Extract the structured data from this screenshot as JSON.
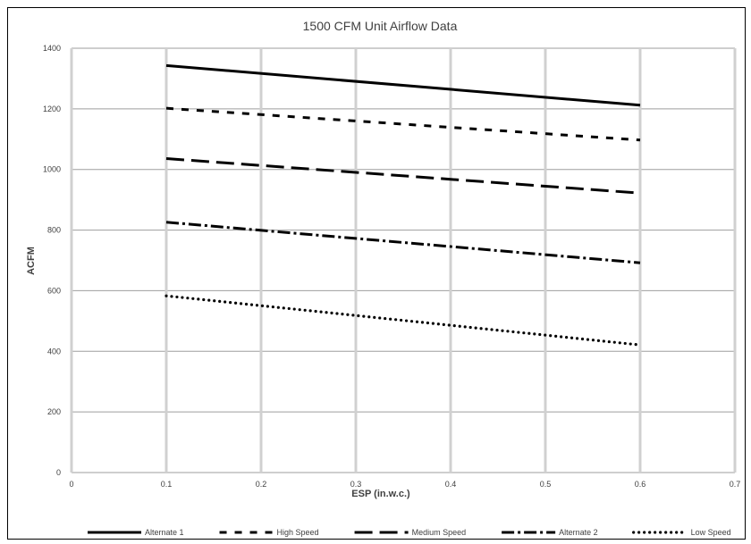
{
  "chart_data": {
    "type": "line",
    "title": "1500 CFM Unit Airflow Data",
    "xlabel": "ESP (in.w.c.)",
    "ylabel": "ACFM",
    "xlim": [
      0,
      0.7
    ],
    "ylim": [
      0,
      1400
    ],
    "x_ticks": [
      "0",
      "0.1",
      "0.2",
      "0.3",
      "0.4",
      "0.5",
      "0.6",
      "0.7"
    ],
    "y_ticks": [
      "0",
      "200",
      "400",
      "600",
      "800",
      "1000",
      "1200",
      "1400"
    ],
    "grid": true,
    "legend_position": "bottom",
    "x": [
      0.1,
      0.6
    ],
    "series": [
      {
        "name": "Alternate 1",
        "values": [
          1343,
          1212
        ],
        "style": "solid",
        "color": "#000000"
      },
      {
        "name": "High Speed",
        "values": [
          1202,
          1097
        ],
        "style": "short-dash",
        "color": "#000000"
      },
      {
        "name": "Medium Speed",
        "values": [
          1036,
          922
        ],
        "style": "long-dash",
        "color": "#000000"
      },
      {
        "name": "Alternate 2",
        "values": [
          826,
          692
        ],
        "style": "dash-dot",
        "color": "#000000"
      },
      {
        "name": "Low Speed",
        "values": [
          583,
          421
        ],
        "style": "dotted",
        "color": "#000000"
      }
    ]
  }
}
